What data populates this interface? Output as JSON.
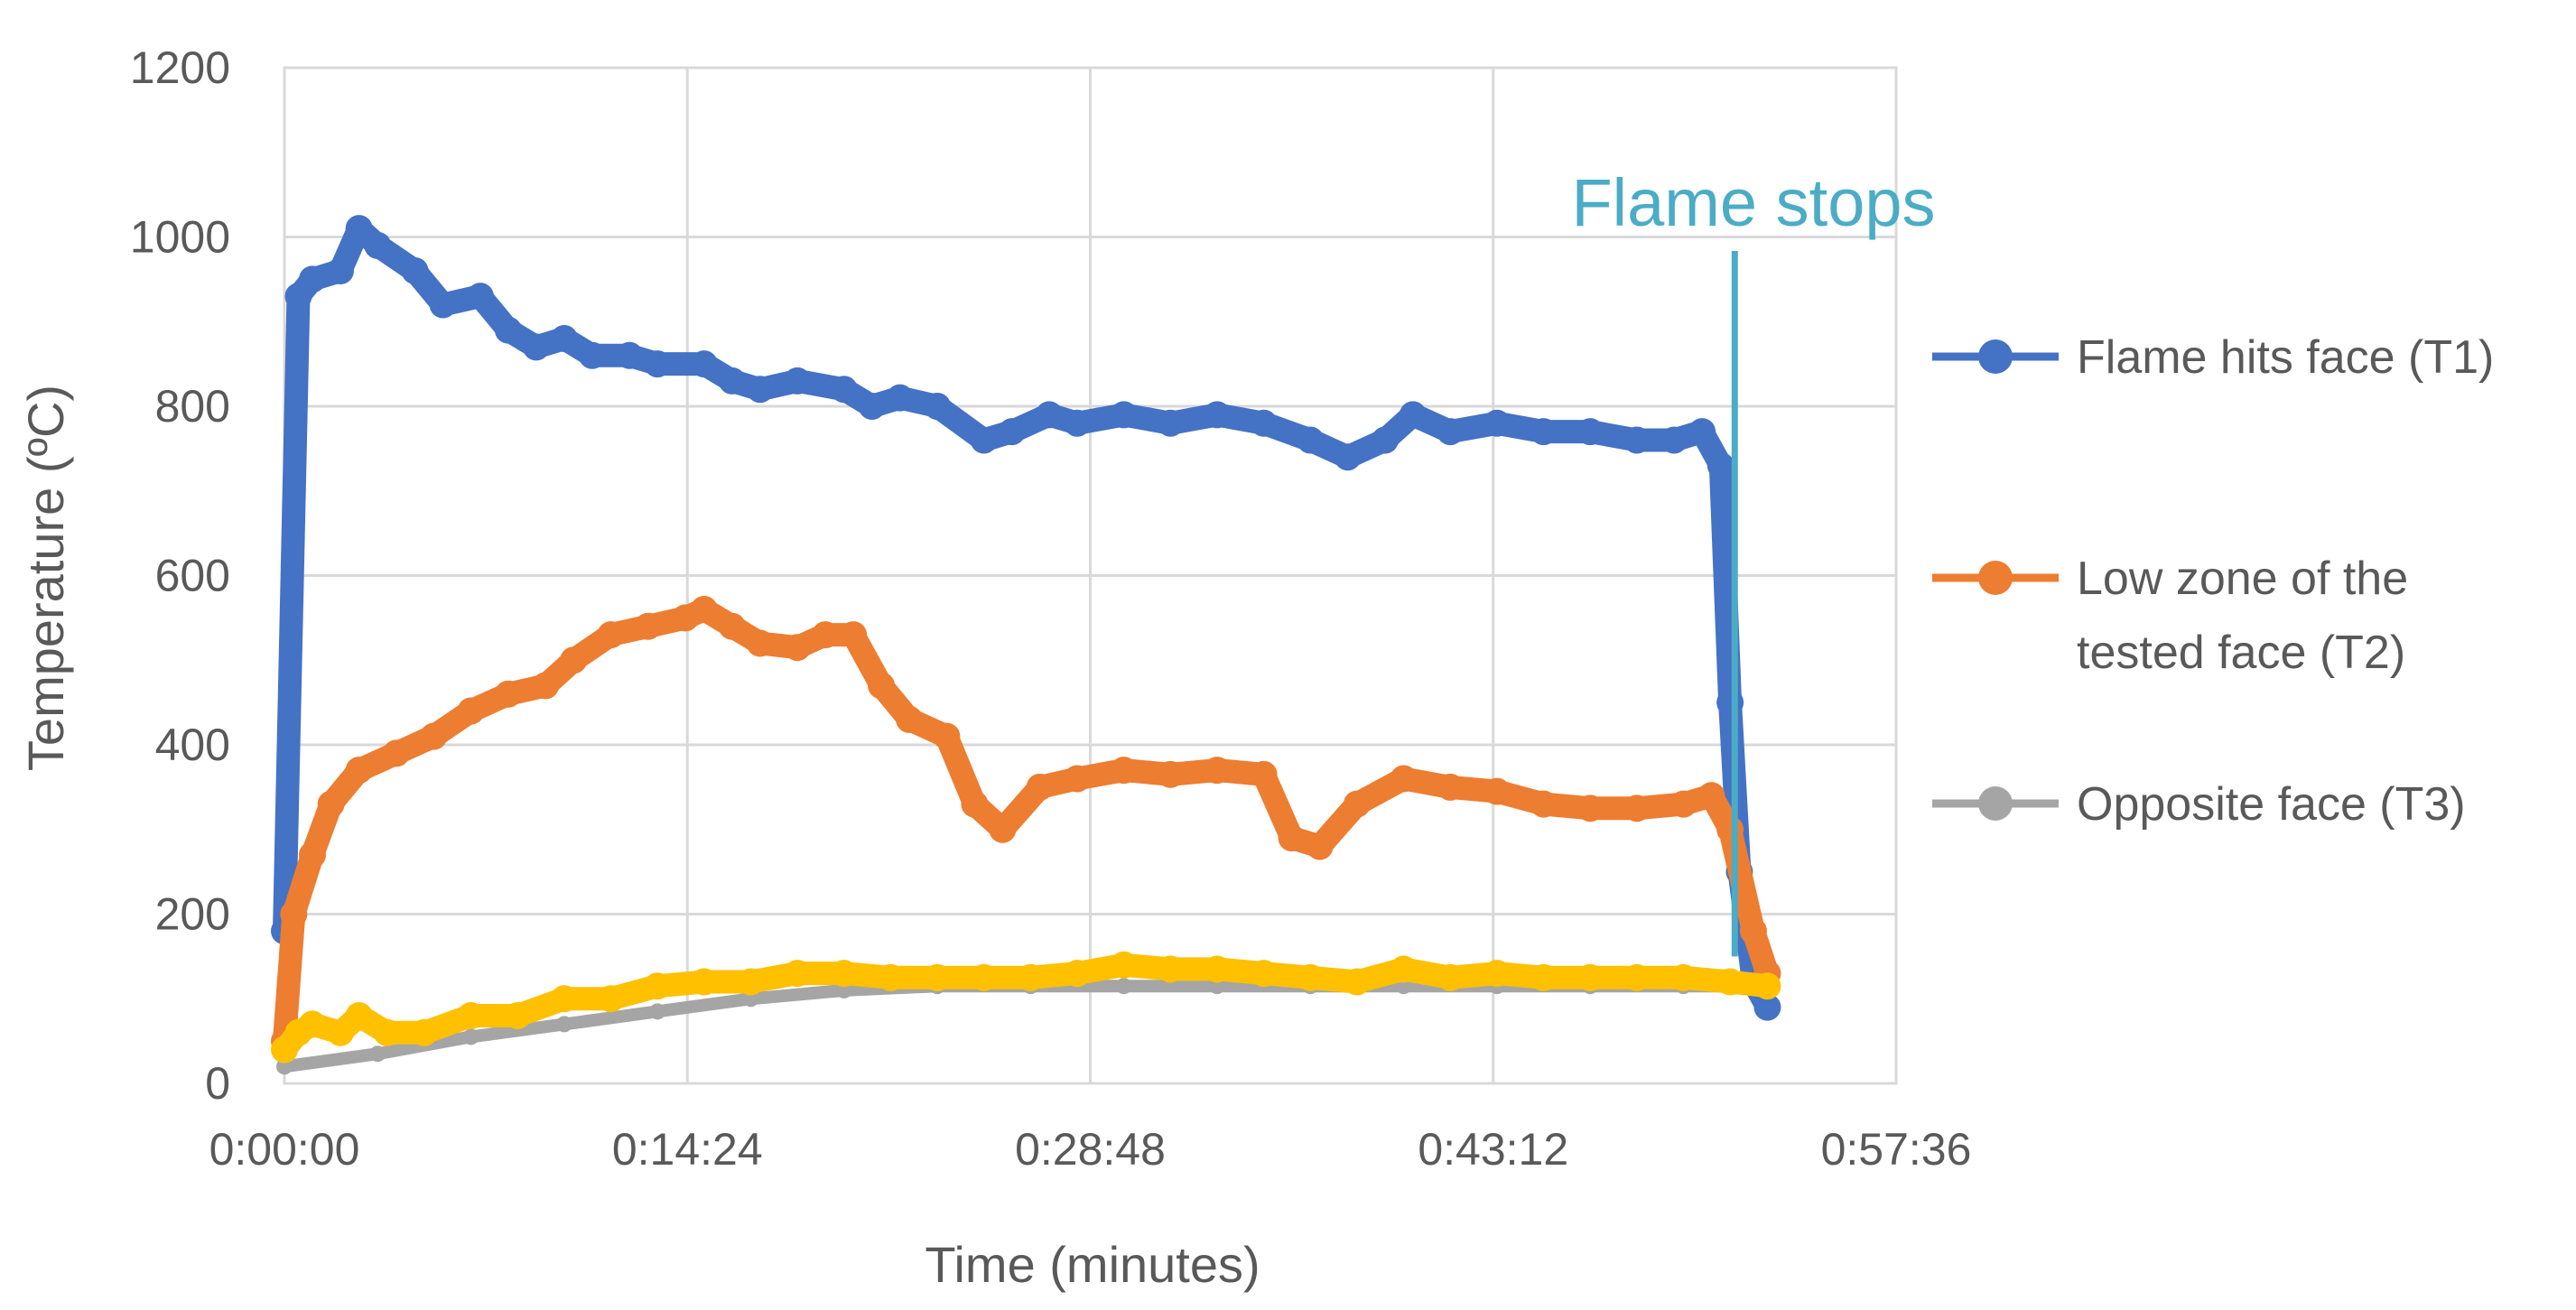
{
  "chart_data": {
    "type": "line",
    "xlabel": "Time (minutes)",
    "ylabel": "Temperature (ºC)",
    "xlim_seconds": [
      0,
      3456
    ],
    "ylim": [
      0,
      1200
    ],
    "y_ticks": [
      0,
      200,
      400,
      600,
      800,
      1000,
      1200
    ],
    "x_ticks": [
      "0:00:00",
      "0:14:24",
      "0:28:48",
      "0:43:12",
      "0:57:36"
    ],
    "x_tick_seconds": [
      0,
      864,
      1728,
      2592,
      3456
    ],
    "grid": true,
    "legend_position": "right",
    "annotation": {
      "text": "Flame stops",
      "x_seconds": 3110,
      "color": "#4bacc6"
    },
    "series": [
      {
        "name": "Flame hits face (T1)",
        "color": "#4472c4",
        "points": [
          [
            0,
            180
          ],
          [
            30,
            930
          ],
          [
            60,
            950
          ],
          [
            120,
            960
          ],
          [
            160,
            1010
          ],
          [
            200,
            990
          ],
          [
            280,
            960
          ],
          [
            340,
            920
          ],
          [
            420,
            930
          ],
          [
            480,
            890
          ],
          [
            540,
            870
          ],
          [
            600,
            880
          ],
          [
            660,
            860
          ],
          [
            740,
            860
          ],
          [
            800,
            850
          ],
          [
            900,
            850
          ],
          [
            960,
            830
          ],
          [
            1020,
            820
          ],
          [
            1100,
            830
          ],
          [
            1200,
            820
          ],
          [
            1260,
            800
          ],
          [
            1320,
            810
          ],
          [
            1400,
            800
          ],
          [
            1500,
            760
          ],
          [
            1560,
            770
          ],
          [
            1640,
            790
          ],
          [
            1700,
            780
          ],
          [
            1800,
            790
          ],
          [
            1900,
            780
          ],
          [
            2000,
            790
          ],
          [
            2100,
            780
          ],
          [
            2200,
            760
          ],
          [
            2280,
            740
          ],
          [
            2360,
            760
          ],
          [
            2420,
            790
          ],
          [
            2500,
            770
          ],
          [
            2600,
            780
          ],
          [
            2700,
            770
          ],
          [
            2800,
            770
          ],
          [
            2900,
            760
          ],
          [
            2980,
            760
          ],
          [
            3040,
            770
          ],
          [
            3080,
            730
          ],
          [
            3100,
            450
          ],
          [
            3120,
            250
          ],
          [
            3150,
            120
          ],
          [
            3180,
            90
          ]
        ]
      },
      {
        "name": "Low zone of the tested face (T2)",
        "color": "#ed7d31",
        "points": [
          [
            0,
            50
          ],
          [
            20,
            200
          ],
          [
            60,
            270
          ],
          [
            100,
            330
          ],
          [
            160,
            370
          ],
          [
            240,
            390
          ],
          [
            320,
            410
          ],
          [
            400,
            440
          ],
          [
            480,
            460
          ],
          [
            560,
            470
          ],
          [
            620,
            500
          ],
          [
            700,
            530
          ],
          [
            780,
            540
          ],
          [
            860,
            550
          ],
          [
            900,
            560
          ],
          [
            960,
            540
          ],
          [
            1020,
            520
          ],
          [
            1100,
            515
          ],
          [
            1160,
            530
          ],
          [
            1220,
            530
          ],
          [
            1280,
            470
          ],
          [
            1340,
            430
          ],
          [
            1420,
            410
          ],
          [
            1480,
            330
          ],
          [
            1540,
            300
          ],
          [
            1620,
            350
          ],
          [
            1700,
            360
          ],
          [
            1800,
            370
          ],
          [
            1900,
            365
          ],
          [
            2000,
            370
          ],
          [
            2100,
            365
          ],
          [
            2160,
            290
          ],
          [
            2220,
            280
          ],
          [
            2300,
            330
          ],
          [
            2400,
            360
          ],
          [
            2500,
            350
          ],
          [
            2600,
            345
          ],
          [
            2700,
            330
          ],
          [
            2800,
            325
          ],
          [
            2900,
            325
          ],
          [
            3000,
            330
          ],
          [
            3060,
            340
          ],
          [
            3100,
            300
          ],
          [
            3150,
            180
          ],
          [
            3180,
            130
          ]
        ]
      },
      {
        "name": "Opposite face (T3)",
        "color": "#a5a5a5",
        "points": [
          [
            0,
            20
          ],
          [
            200,
            35
          ],
          [
            400,
            55
          ],
          [
            600,
            70
          ],
          [
            800,
            85
          ],
          [
            1000,
            100
          ],
          [
            1200,
            110
          ],
          [
            1400,
            115
          ],
          [
            1600,
            115
          ],
          [
            1800,
            115
          ],
          [
            2000,
            115
          ],
          [
            2200,
            115
          ],
          [
            2400,
            115
          ],
          [
            2600,
            115
          ],
          [
            2800,
            115
          ],
          [
            3000,
            115
          ],
          [
            3180,
            115
          ]
        ]
      },
      {
        "color": "#ffc000",
        "points": [
          [
            0,
            40
          ],
          [
            30,
            60
          ],
          [
            60,
            70
          ],
          [
            120,
            60
          ],
          [
            160,
            80
          ],
          [
            220,
            60
          ],
          [
            300,
            60
          ],
          [
            400,
            80
          ],
          [
            500,
            80
          ],
          [
            600,
            100
          ],
          [
            700,
            100
          ],
          [
            800,
            115
          ],
          [
            900,
            120
          ],
          [
            1000,
            120
          ],
          [
            1100,
            130
          ],
          [
            1200,
            130
          ],
          [
            1300,
            125
          ],
          [
            1400,
            125
          ],
          [
            1500,
            125
          ],
          [
            1600,
            125
          ],
          [
            1700,
            130
          ],
          [
            1800,
            140
          ],
          [
            1900,
            135
          ],
          [
            2000,
            135
          ],
          [
            2100,
            130
          ],
          [
            2200,
            125
          ],
          [
            2300,
            120
          ],
          [
            2400,
            135
          ],
          [
            2500,
            125
          ],
          [
            2600,
            130
          ],
          [
            2700,
            125
          ],
          [
            2800,
            125
          ],
          [
            2900,
            125
          ],
          [
            3000,
            125
          ],
          [
            3100,
            120
          ],
          [
            3180,
            115
          ]
        ]
      }
    ]
  }
}
